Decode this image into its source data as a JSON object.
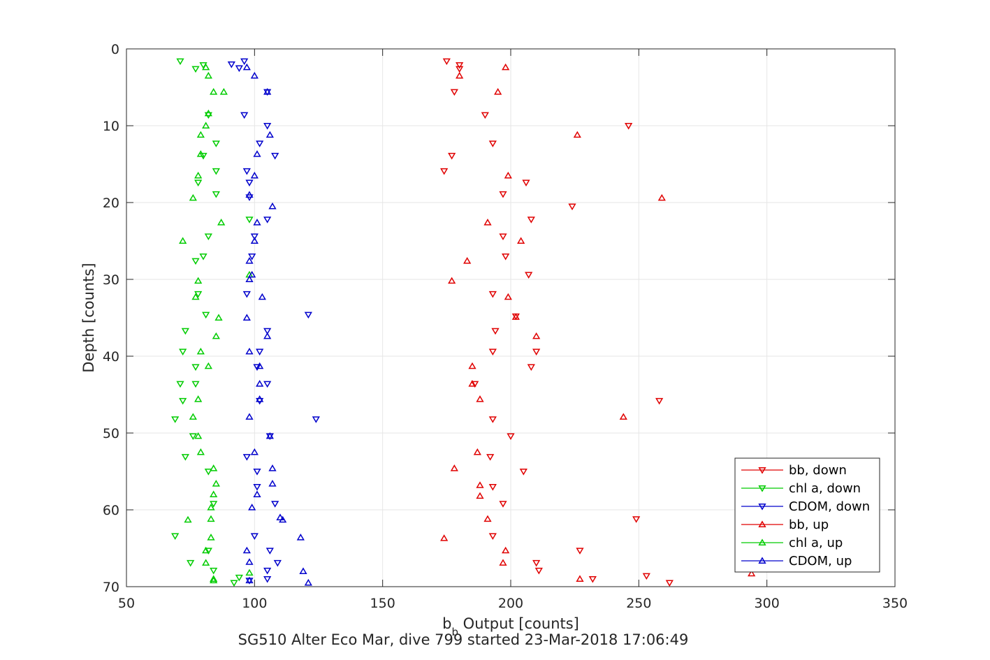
{
  "chart_data": {
    "type": "scatter",
    "title": "SG510 Alter Eco Mar, dive 799 started 23-Mar-2018 17:06:49",
    "xlabel_main": "b",
    "xlabel_sub": "b",
    "xlabel_rest": " Output [counts]",
    "ylabel": "Depth [counts]",
    "xlim": [
      50,
      350
    ],
    "ylim": [
      0,
      70
    ],
    "y_reversed": true,
    "grid": true,
    "legend_position": "bottom-right",
    "x_ticks": [
      "50",
      "100",
      "150",
      "200",
      "250",
      "300",
      "350"
    ],
    "y_ticks": [
      "0",
      "10",
      "20",
      "30",
      "40",
      "50",
      "60",
      "70"
    ],
    "series": [
      {
        "name": "bb, down",
        "color": "#e00000",
        "marker": "triangle-down",
        "points": [
          [
            175,
            1.6
          ],
          [
            180,
            2.1
          ],
          [
            180,
            2.6
          ],
          [
            178,
            5.6
          ],
          [
            190,
            8.6
          ],
          [
            246,
            10.0
          ],
          [
            193,
            12.3
          ],
          [
            177,
            13.9
          ],
          [
            174,
            15.9
          ],
          [
            206,
            17.4
          ],
          [
            197,
            18.9
          ],
          [
            224,
            20.5
          ],
          [
            208,
            22.2
          ],
          [
            197,
            24.4
          ],
          [
            198,
            27.0
          ],
          [
            207,
            29.4
          ],
          [
            193,
            31.9
          ],
          [
            202,
            34.8
          ],
          [
            194,
            36.7
          ],
          [
            210,
            39.4
          ],
          [
            193,
            39.4
          ],
          [
            208,
            41.4
          ],
          [
            186,
            43.6
          ],
          [
            258,
            45.8
          ],
          [
            193,
            48.2
          ],
          [
            200,
            50.4
          ],
          [
            192,
            53.1
          ],
          [
            205,
            55.0
          ],
          [
            193,
            57.0
          ],
          [
            197,
            59.2
          ],
          [
            249,
            61.2
          ],
          [
            193,
            63.4
          ],
          [
            227,
            65.3
          ],
          [
            210,
            66.9
          ],
          [
            211,
            67.9
          ],
          [
            232,
            69.0
          ],
          [
            262,
            69.5
          ],
          [
            253,
            68.6
          ]
        ]
      },
      {
        "name": "chl a, down",
        "color": "#00cc00",
        "marker": "triangle-down",
        "points": [
          [
            71,
            1.6
          ],
          [
            80,
            2.1
          ],
          [
            77,
            2.6
          ],
          [
            82,
            8.6
          ],
          [
            85,
            12.3
          ],
          [
            80,
            13.9
          ],
          [
            85,
            15.9
          ],
          [
            78,
            17.4
          ],
          [
            85,
            18.9
          ],
          [
            82,
            24.4
          ],
          [
            80,
            27.0
          ],
          [
            77,
            27.6
          ],
          [
            78,
            31.9
          ],
          [
            81,
            34.6
          ],
          [
            73,
            36.7
          ],
          [
            72,
            39.4
          ],
          [
            77,
            41.4
          ],
          [
            71,
            43.6
          ],
          [
            77,
            43.6
          ],
          [
            72,
            45.8
          ],
          [
            69,
            48.2
          ],
          [
            76,
            50.4
          ],
          [
            73,
            53.1
          ],
          [
            82,
            55.0
          ],
          [
            84,
            59.2
          ],
          [
            69,
            63.4
          ],
          [
            82,
            65.3
          ],
          [
            75,
            66.9
          ],
          [
            84,
            67.9
          ],
          [
            92,
            69.5
          ],
          [
            94,
            68.8
          ],
          [
            98,
            22.2
          ]
        ]
      },
      {
        "name": "CDOM, down",
        "color": "#0000cc",
        "marker": "triangle-down",
        "points": [
          [
            96,
            1.6
          ],
          [
            91,
            2.0
          ],
          [
            94,
            2.5
          ],
          [
            105,
            5.6
          ],
          [
            96,
            8.6
          ],
          [
            105,
            10.0
          ],
          [
            102,
            12.3
          ],
          [
            108,
            13.9
          ],
          [
            97,
            15.9
          ],
          [
            98,
            17.4
          ],
          [
            98,
            19.3
          ],
          [
            105,
            22.2
          ],
          [
            100,
            24.4
          ],
          [
            99,
            27.0
          ],
          [
            97,
            31.9
          ],
          [
            121,
            34.6
          ],
          [
            105,
            36.7
          ],
          [
            102,
            39.4
          ],
          [
            101,
            41.4
          ],
          [
            105,
            43.6
          ],
          [
            102,
            45.8
          ],
          [
            124,
            48.2
          ],
          [
            106,
            50.4
          ],
          [
            97,
            53.1
          ],
          [
            101,
            55.0
          ],
          [
            101,
            57.0
          ],
          [
            108,
            59.2
          ],
          [
            100,
            63.4
          ],
          [
            106,
            65.3
          ],
          [
            109,
            66.9
          ],
          [
            105,
            67.9
          ],
          [
            105,
            69.0
          ],
          [
            98,
            69.2
          ]
        ]
      },
      {
        "name": "bb, up",
        "color": "#e00000",
        "marker": "triangle-up",
        "points": [
          [
            198,
            2.4
          ],
          [
            180,
            3.5
          ],
          [
            195,
            5.6
          ],
          [
            226,
            11.2
          ],
          [
            199,
            16.5
          ],
          [
            259,
            19.4
          ],
          [
            191,
            22.6
          ],
          [
            204,
            25.0
          ],
          [
            183,
            27.6
          ],
          [
            177,
            30.2
          ],
          [
            199,
            32.3
          ],
          [
            202,
            34.9
          ],
          [
            210,
            37.4
          ],
          [
            185,
            41.3
          ],
          [
            185,
            43.6
          ],
          [
            188,
            45.6
          ],
          [
            244,
            47.9
          ],
          [
            187,
            52.5
          ],
          [
            178,
            54.6
          ],
          [
            188,
            56.8
          ],
          [
            188,
            58.2
          ],
          [
            191,
            61.2
          ],
          [
            174,
            63.7
          ],
          [
            198,
            65.3
          ],
          [
            197,
            66.9
          ],
          [
            227,
            69.0
          ],
          [
            294,
            68.3
          ]
        ]
      },
      {
        "name": "chl a, up",
        "color": "#00cc00",
        "marker": "triangle-up",
        "points": [
          [
            81,
            2.4
          ],
          [
            82,
            3.5
          ],
          [
            84,
            5.6
          ],
          [
            88,
            5.6
          ],
          [
            82,
            8.4
          ],
          [
            81,
            10.0
          ],
          [
            79,
            11.2
          ],
          [
            79,
            13.7
          ],
          [
            78,
            16.5
          ],
          [
            76,
            19.4
          ],
          [
            87,
            22.6
          ],
          [
            72,
            25.0
          ],
          [
            98,
            29.4
          ],
          [
            78,
            30.2
          ],
          [
            77,
            32.3
          ],
          [
            86,
            35.0
          ],
          [
            85,
            37.4
          ],
          [
            79,
            39.4
          ],
          [
            82,
            41.3
          ],
          [
            78,
            45.6
          ],
          [
            76,
            47.9
          ],
          [
            78,
            50.4
          ],
          [
            79,
            52.5
          ],
          [
            84,
            54.6
          ],
          [
            85,
            56.6
          ],
          [
            84,
            58.0
          ],
          [
            83,
            59.7
          ],
          [
            83,
            61.2
          ],
          [
            74,
            61.3
          ],
          [
            83,
            63.6
          ],
          [
            81,
            65.3
          ],
          [
            81,
            66.9
          ],
          [
            84,
            69.0
          ],
          [
            84,
            69.2
          ],
          [
            98,
            68.2
          ]
        ]
      },
      {
        "name": "CDOM, up",
        "color": "#0000cc",
        "marker": "triangle-up",
        "points": [
          [
            97,
            2.4
          ],
          [
            100,
            3.5
          ],
          [
            105,
            5.6
          ],
          [
            106,
            11.2
          ],
          [
            101,
            13.7
          ],
          [
            100,
            16.5
          ],
          [
            98,
            19.0
          ],
          [
            107,
            20.5
          ],
          [
            101,
            22.6
          ],
          [
            100,
            25.0
          ],
          [
            98,
            27.6
          ],
          [
            99,
            29.4
          ],
          [
            98,
            30.0
          ],
          [
            103,
            32.3
          ],
          [
            97,
            35.0
          ],
          [
            105,
            37.4
          ],
          [
            98,
            39.4
          ],
          [
            102,
            41.3
          ],
          [
            102,
            43.6
          ],
          [
            102,
            45.6
          ],
          [
            98,
            47.9
          ],
          [
            106,
            50.4
          ],
          [
            100,
            52.5
          ],
          [
            107,
            54.6
          ],
          [
            107,
            56.6
          ],
          [
            101,
            58.0
          ],
          [
            99,
            59.7
          ],
          [
            110,
            61.0
          ],
          [
            111,
            61.3
          ],
          [
            118,
            63.6
          ],
          [
            97,
            65.3
          ],
          [
            98,
            66.8
          ],
          [
            119,
            68.0
          ],
          [
            121,
            69.5
          ],
          [
            98,
            69.2
          ]
        ]
      }
    ]
  }
}
